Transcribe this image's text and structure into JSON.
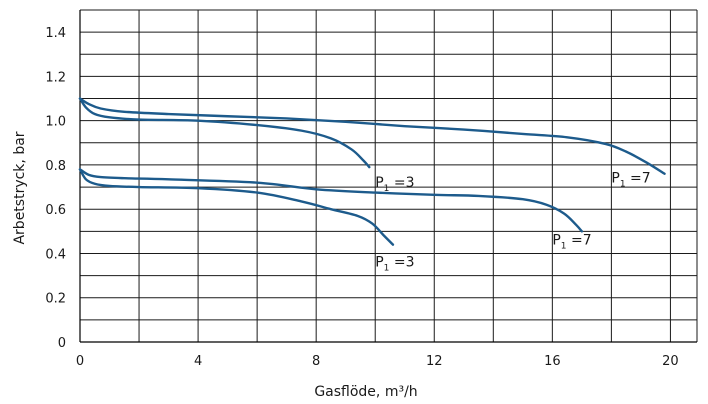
{
  "chart_data": {
    "type": "line",
    "xlabel": "Gasflöde, m³/h",
    "ylabel": "Arbetstryck, bar",
    "xlim": [
      0,
      20.9
    ],
    "ylim": [
      0,
      1.5
    ],
    "x_ticks": [
      0,
      4,
      8,
      12,
      16,
      20
    ],
    "x_tick_labels": [
      "0",
      "4",
      "8",
      "12",
      "16",
      "20"
    ],
    "y_ticks": [
      0,
      0.2,
      0.4,
      0.6,
      0.8,
      1.0,
      1.2,
      1.4
    ],
    "y_tick_labels": [
      "0",
      "0.2",
      "0.4",
      "0.6",
      "0.8",
      "1.0",
      "1.2",
      "1.4"
    ],
    "x_grid_step": 2,
    "y_grid_step": 0.1,
    "grid": true,
    "line_color": "#1d5b8c",
    "series": [
      {
        "label": "P1 =7",
        "label_text": "P",
        "label_sub": "1",
        "label_tail": " =7",
        "label_anchor": [
          18.0,
          0.72
        ],
        "x": [
          0,
          0.3,
          0.7,
          1.5,
          3,
          5,
          7,
          9,
          11,
          13,
          15,
          16.5,
          17.8,
          18.5,
          19.2,
          19.8
        ],
        "y": [
          1.1,
          1.075,
          1.055,
          1.04,
          1.03,
          1.02,
          1.01,
          0.995,
          0.975,
          0.96,
          0.94,
          0.925,
          0.895,
          0.86,
          0.81,
          0.76
        ]
      },
      {
        "label": "P1 =3",
        "label_text": "P",
        "label_sub": "1",
        "label_tail": " =3",
        "label_anchor": [
          10.0,
          0.7
        ],
        "x": [
          0,
          0.2,
          0.5,
          1,
          2,
          4,
          6,
          7.5,
          8.5,
          9.2,
          9.6,
          9.8
        ],
        "y": [
          1.1,
          1.06,
          1.03,
          1.015,
          1.005,
          1.0,
          0.98,
          0.955,
          0.92,
          0.87,
          0.82,
          0.79
        ]
      },
      {
        "label": "P1 =7",
        "label_text": "P",
        "label_sub": "1",
        "label_tail": " =7",
        "label_anchor": [
          16.0,
          0.44
        ],
        "x": [
          0,
          0.3,
          0.7,
          1.5,
          3,
          6,
          8,
          10,
          12,
          13.5,
          15,
          15.8,
          16.4,
          16.8,
          17.0
        ],
        "y": [
          0.78,
          0.755,
          0.745,
          0.74,
          0.735,
          0.72,
          0.69,
          0.675,
          0.665,
          0.66,
          0.645,
          0.62,
          0.58,
          0.53,
          0.5
        ]
      },
      {
        "label": "P1 =3",
        "label_text": "P",
        "label_sub": "1",
        "label_tail": " =3",
        "label_anchor": [
          10.0,
          0.34
        ],
        "x": [
          0,
          0.2,
          0.5,
          1,
          2,
          4,
          6,
          7.5,
          8.5,
          9.4,
          9.9,
          10.3,
          10.6
        ],
        "y": [
          0.78,
          0.735,
          0.715,
          0.705,
          0.7,
          0.695,
          0.675,
          0.635,
          0.6,
          0.57,
          0.535,
          0.48,
          0.44
        ]
      }
    ]
  }
}
